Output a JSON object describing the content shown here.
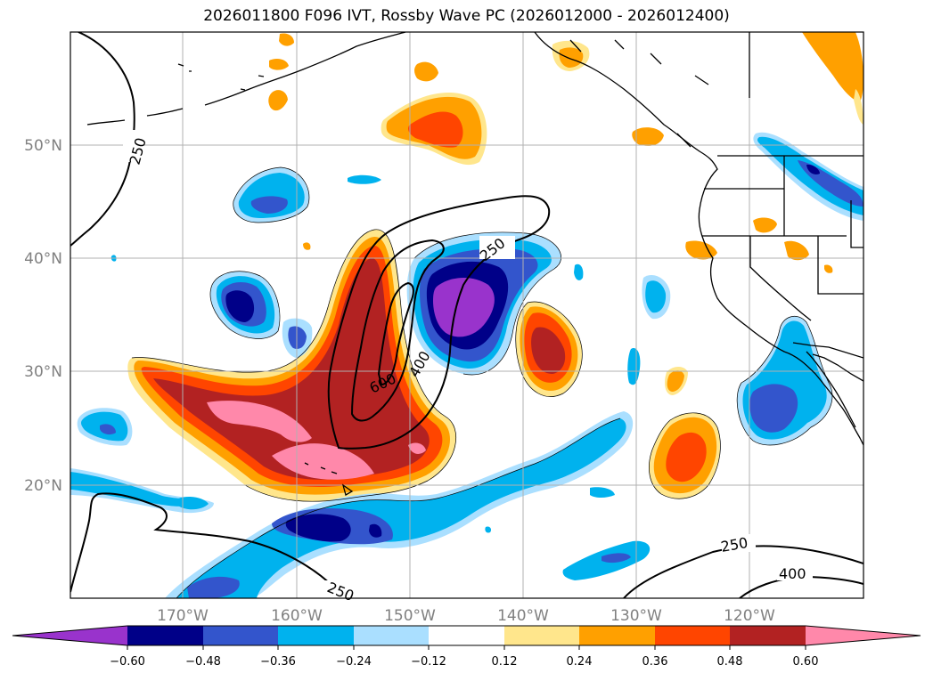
{
  "title": "2026011800 F096 IVT, Rossby Wave PC (2026012000 - 2026012400)",
  "colors": {
    "neg_060": "#9933cc",
    "neg_048": "#000088",
    "neg_036": "#3355cc",
    "neg_024": "#00b2ee",
    "neg_012": "#aadfff",
    "zero": "#ffffff",
    "pos_012": "#ffe68c",
    "pos_024": "#ffa000",
    "pos_036": "#ff4500",
    "pos_048": "#b22222",
    "pos_060": "#ff88aa",
    "grid": "#b0b0b0",
    "tick": "#808080",
    "contour": "#000000"
  },
  "map": {
    "lon_labels": [
      "170°W",
      "160°W",
      "150°W",
      "140°W",
      "130°W",
      "120°W"
    ],
    "lat_labels": [
      "50°N",
      "40°N",
      "30°N",
      "20°N"
    ],
    "contour_labels": [
      "250",
      "250",
      "250",
      "250",
      "600",
      "400",
      "400"
    ]
  },
  "colorbar": {
    "levels": [
      "−0.60",
      "−0.48",
      "−0.36",
      "−0.24",
      "−0.12",
      "0.12",
      "0.24",
      "0.36",
      "0.48",
      "0.60"
    ],
    "bins": [
      "neg_060",
      "neg_048",
      "neg_036",
      "neg_024",
      "neg_012",
      "zero",
      "pos_012",
      "pos_024",
      "pos_036",
      "pos_048",
      "pos_060"
    ]
  }
}
